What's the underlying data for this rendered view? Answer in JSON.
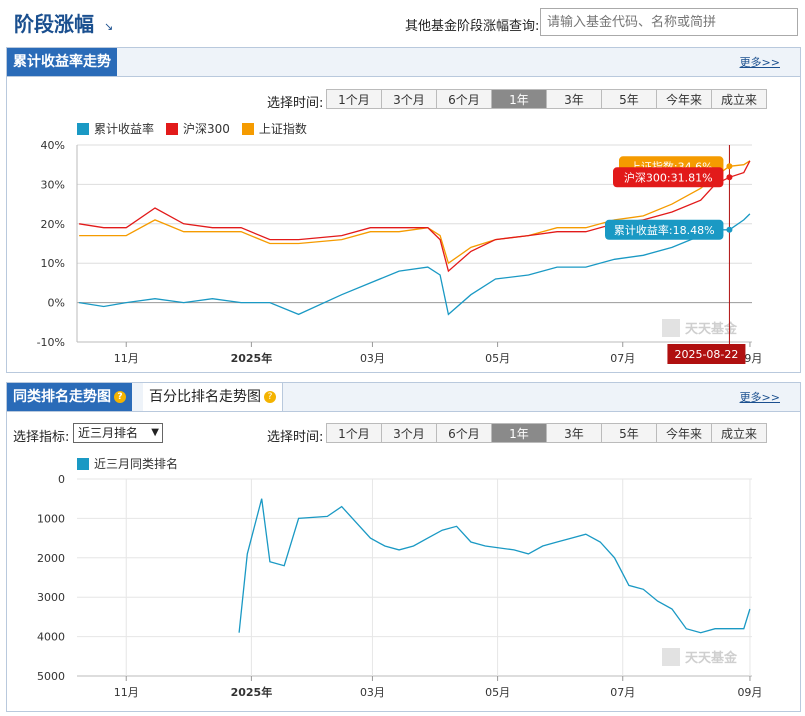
{
  "header": {
    "title": "阶段涨幅",
    "arrow": "↘",
    "query_label": "其他基金阶段涨幅查询:",
    "query_placeholder": "请输入基金代码、名称或简拼"
  },
  "panel1": {
    "title": "累计收益率走势",
    "more": "更多>>"
  },
  "panel2": {
    "tab_active": "同类排名走势图",
    "tab_inactive": "百分比排名走势图",
    "more": "更多>>",
    "select_label": "选择指标:",
    "select_value": "近三月排名"
  },
  "time_label": "选择时间:",
  "time_buttons": [
    "1个月",
    "3个月",
    "6个月",
    "1年",
    "3年",
    "5年",
    "今年来",
    "成立来"
  ],
  "active_time": "1年",
  "watermark": {
    "text": "天天基金",
    "sub": "基金"
  },
  "colors": {
    "fund": "#1a99c4",
    "hs300": "#e21a1a",
    "sh": "#f59b00",
    "rank": "#1a99c4",
    "marker_line": "#b01010"
  },
  "chart_data": [
    {
      "type": "line",
      "legend": [
        "累计收益率",
        "沪深300",
        "上证指数"
      ],
      "yticks": [
        "40%",
        "30%",
        "20%",
        "10%",
        "0%",
        "-10%"
      ],
      "ylim": [
        -10,
        40
      ],
      "xticks": [
        "11月",
        "2025年",
        "03月",
        "05月",
        "07月",
        "09月"
      ],
      "x": [
        "2024-10-09",
        "2024-10-21",
        "2024-11-01",
        "2024-11-15",
        "2024-11-29",
        "2024-12-13",
        "2024-12-27",
        "2025-01-10",
        "2025-01-24",
        "2025-02-14",
        "2025-02-28",
        "2025-03-14",
        "2025-03-28",
        "2025-04-03",
        "2025-04-07",
        "2025-04-18",
        "2025-04-30",
        "2025-05-16",
        "2025-05-30",
        "2025-06-13",
        "2025-06-27",
        "2025-07-11",
        "2025-07-25",
        "2025-08-08",
        "2025-08-15",
        "2025-08-22",
        "2025-08-29",
        "2025-09-01"
      ],
      "series": [
        {
          "name": "累计收益率",
          "values": [
            0,
            -1,
            0,
            1,
            0,
            1,
            0,
            0,
            -3,
            2,
            5,
            8,
            9,
            7,
            -3,
            2,
            6,
            7,
            9,
            9,
            11,
            12,
            14,
            17,
            18.48,
            18.48,
            21,
            22.5
          ]
        },
        {
          "name": "沪深300",
          "values": [
            20,
            19,
            19,
            24,
            20,
            19,
            19,
            16,
            16,
            17,
            19,
            19,
            19,
            16,
            8,
            13,
            16,
            17,
            18,
            18,
            20,
            21,
            23,
            26,
            30,
            31.81,
            33,
            36
          ]
        },
        {
          "name": "上证指数",
          "values": [
            17,
            17,
            17,
            21,
            18,
            18,
            18,
            15,
            15,
            16,
            18,
            18,
            19,
            17,
            10,
            14,
            16,
            17,
            19,
            19,
            21,
            22,
            25,
            29,
            32,
            34.6,
            35,
            36
          ]
        }
      ],
      "annotations": {
        "sh": "上证指数:34.6%",
        "hs300": "沪深300:31.81%",
        "fund": "累计收益率:18.48%",
        "date": "2025-08-22"
      }
    },
    {
      "type": "line",
      "legend": [
        "近三月同类排名"
      ],
      "yticks": [
        "0",
        "1000",
        "2000",
        "3000",
        "4000",
        "5000"
      ],
      "ylim": [
        0,
        5000
      ],
      "xticks": [
        "11月",
        "2025年",
        "03月",
        "05月",
        "07月",
        "09月"
      ],
      "x": [
        "2024-12-26",
        "2024-12-30",
        "2025-01-06",
        "2025-01-10",
        "2025-01-17",
        "2025-01-24",
        "2025-02-07",
        "2025-02-14",
        "2025-02-21",
        "2025-02-28",
        "2025-03-07",
        "2025-03-14",
        "2025-03-21",
        "2025-03-28",
        "2025-04-04",
        "2025-04-11",
        "2025-04-18",
        "2025-04-25",
        "2025-05-09",
        "2025-05-16",
        "2025-05-23",
        "2025-05-30",
        "2025-06-06",
        "2025-06-13",
        "2025-06-20",
        "2025-06-27",
        "2025-07-04",
        "2025-07-11",
        "2025-07-18",
        "2025-07-25",
        "2025-08-01",
        "2025-08-08",
        "2025-08-15",
        "2025-08-22",
        "2025-08-29",
        "2025-09-01"
      ],
      "series": [
        {
          "name": "近三月同类排名",
          "values": [
            3900,
            1900,
            500,
            2100,
            2200,
            1000,
            950,
            700,
            1100,
            1500,
            1700,
            1800,
            1700,
            1500,
            1300,
            1200,
            1600,
            1700,
            1800,
            1900,
            1700,
            1600,
            1500,
            1400,
            1600,
            2000,
            2700,
            2800,
            3100,
            3300,
            3800,
            3900,
            3800,
            3800,
            3800,
            3300
          ]
        }
      ]
    }
  ]
}
